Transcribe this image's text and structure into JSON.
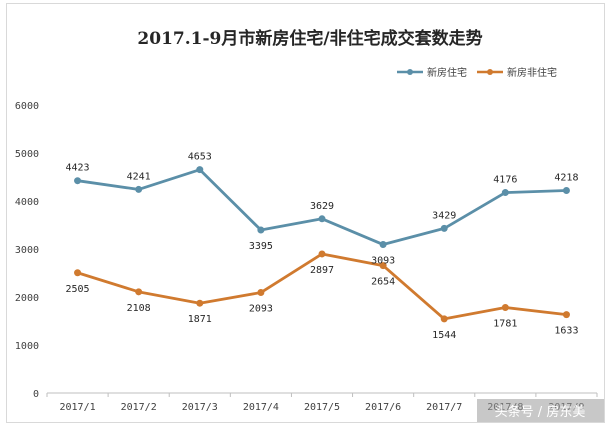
{
  "chart_data": {
    "type": "line",
    "title": "2017.1-9月市新房住宅/非住宅成交套数走势",
    "categories": [
      "2017/1",
      "2017/2",
      "2017/3",
      "2017/4",
      "2017/5",
      "2017/6",
      "2017/7",
      "2017/8",
      "2017/9"
    ],
    "ylim": [
      0,
      6000
    ],
    "yticks": [
      0,
      1000,
      2000,
      3000,
      4000,
      5000,
      6000
    ],
    "grid": false,
    "legend_position": "top-right",
    "series": [
      {
        "name": "新房住宅",
        "color": "#5b8fa8",
        "values": [
          4423,
          4241,
          4653,
          3395,
          3629,
          3093,
          3429,
          4176,
          4218
        ]
      },
      {
        "name": "新房非住宅",
        "color": "#d07a2f",
        "values": [
          2505,
          2108,
          1871,
          2093,
          2897,
          2654,
          1544,
          1781,
          1633
        ]
      }
    ]
  },
  "watermark": "头条号 / 房东美"
}
